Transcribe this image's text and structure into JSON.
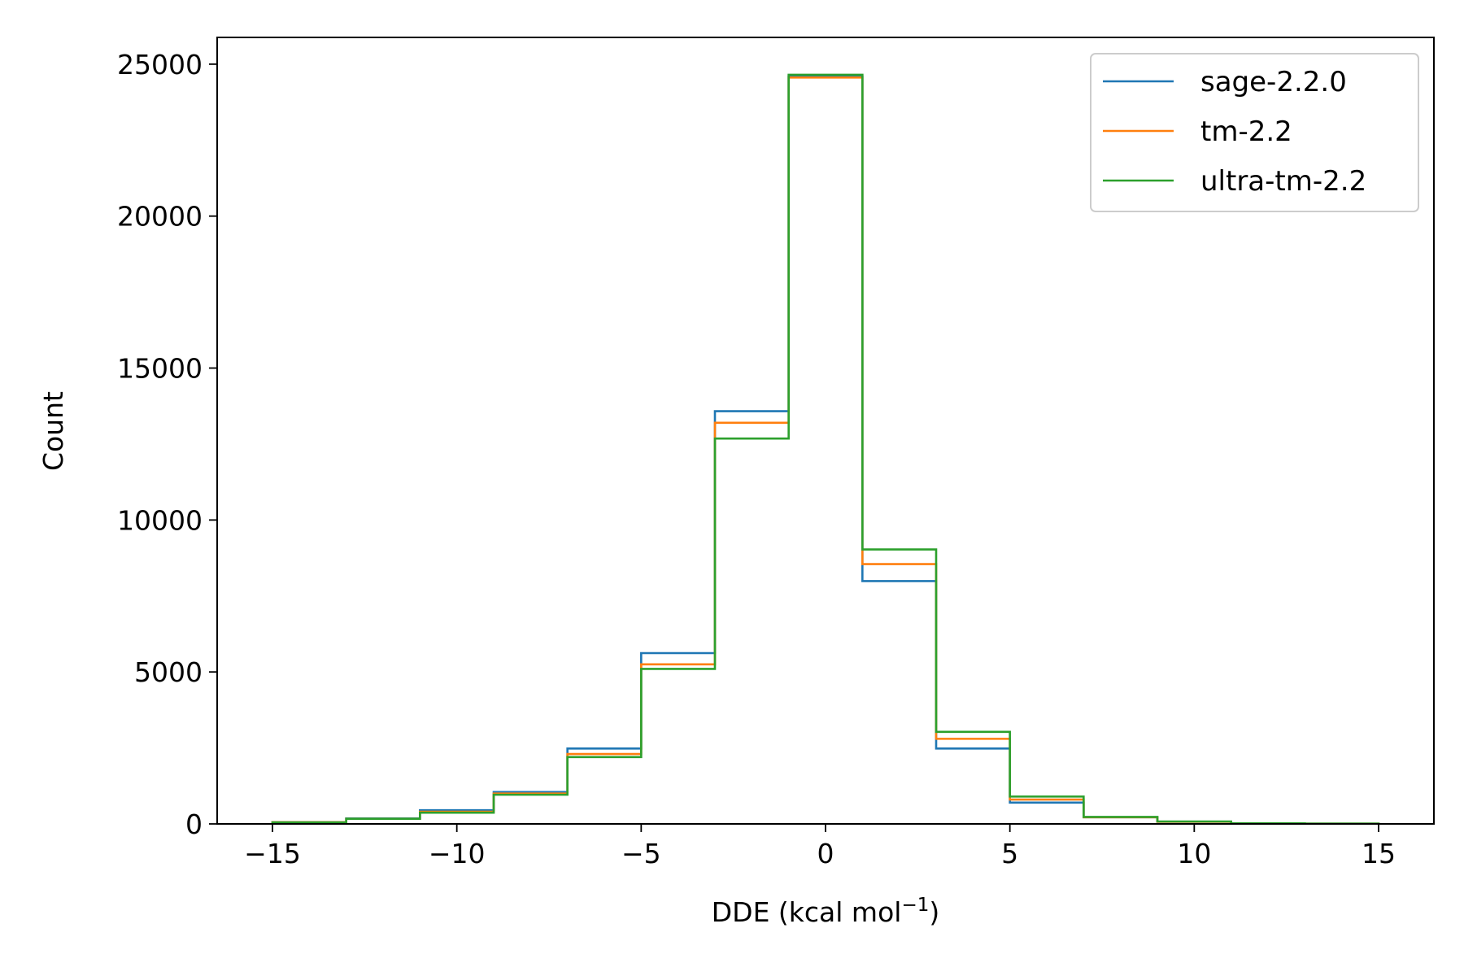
{
  "chart_data": {
    "type": "histogram",
    "title": "",
    "xlabel_main": "DDE (kcal mol",
    "xlabel_sup": "−1",
    "xlabel_close": ")",
    "ylabel": "Count",
    "xlim": [
      -16.5,
      16.5
    ],
    "ylim": [
      0,
      25880
    ],
    "xticks": [
      -15,
      -10,
      -5,
      0,
      5,
      10,
      15
    ],
    "xtick_labels": [
      "−15",
      "−10",
      "−5",
      "0",
      "5",
      "10",
      "15"
    ],
    "yticks": [
      0,
      5000,
      10000,
      15000,
      20000,
      25000
    ],
    "ytick_labels": [
      "0",
      "5000",
      "10000",
      "15000",
      "20000",
      "25000"
    ],
    "bin_edges": [
      -15,
      -13,
      -11,
      -9,
      -7,
      -5,
      -3,
      -1,
      1,
      3,
      5,
      7,
      9,
      11,
      13,
      15
    ],
    "legend_position": "top-right",
    "series": [
      {
        "name": "sage-2.2.0",
        "color": "#1f77b4",
        "counts": [
          60,
          180,
          450,
          1050,
          2480,
          5620,
          13580,
          24600,
          7990,
          2480,
          700,
          220,
          70,
          20,
          10
        ]
      },
      {
        "name": "tm-2.2",
        "color": "#ff7f0e",
        "counts": [
          55,
          170,
          400,
          1000,
          2300,
          5250,
          13200,
          24560,
          8550,
          2800,
          800,
          220,
          70,
          20,
          10
        ]
      },
      {
        "name": "ultra-tm-2.2",
        "color": "#2ca02c",
        "counts": [
          50,
          170,
          370,
          960,
          2200,
          5100,
          12680,
          24650,
          9030,
          3030,
          900,
          230,
          80,
          20,
          10
        ]
      }
    ]
  }
}
